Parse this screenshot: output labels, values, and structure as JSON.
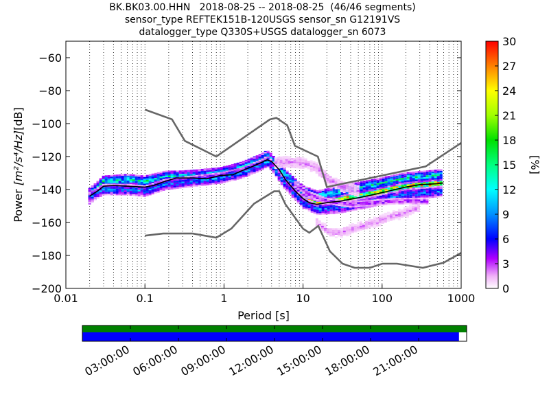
{
  "title": {
    "line1": "BK.BK03.00.HHN   2018-08-25 -- 2018-08-25  (46/46 segments)",
    "line2": "sensor_type REFTEK151B-120USGS sensor_sn G12191VS",
    "line3": "datalogger_type Q330S+USGS datalogger_sn 6073"
  },
  "chart_data": {
    "type": "heatmap",
    "xlabel": "Period [s]",
    "ylabel_main": "Power ",
    "ylabel_unit": "[m²/s⁴/Hz]",
    "ylabel_db": "[dB]",
    "x_scale": "log",
    "xlim": [
      0.01,
      1000
    ],
    "ylim": [
      -200,
      -50
    ],
    "x_ticks": [
      {
        "value": 0.01,
        "label": "0.01"
      },
      {
        "value": 0.1,
        "label": "0.1"
      },
      {
        "value": 1,
        "label": "1"
      },
      {
        "value": 10,
        "label": "10"
      },
      {
        "value": 100,
        "label": "100"
      },
      {
        "value": 1000,
        "label": "1000"
      }
    ],
    "y_ticks": [
      {
        "value": -60,
        "label": "−60"
      },
      {
        "value": -80,
        "label": "−80"
      },
      {
        "value": -100,
        "label": "−100"
      },
      {
        "value": -120,
        "label": "−120"
      },
      {
        "value": -140,
        "label": "−140"
      },
      {
        "value": -160,
        "label": "−160"
      },
      {
        "value": -180,
        "label": "−180"
      },
      {
        "value": -200,
        "label": "−200"
      }
    ],
    "grid": "dotted vertical",
    "colorbar": {
      "label": "[%]",
      "range": [
        0,
        30
      ],
      "ticks": [
        "0",
        "3",
        "6",
        "9",
        "12",
        "15",
        "18",
        "21",
        "24",
        "27",
        "30"
      ]
    },
    "noise_model_color": "#666666",
    "high_noise_model": [
      [
        0.1,
        -91.5
      ],
      [
        0.22,
        -97.4
      ],
      [
        0.32,
        -110.5
      ],
      [
        0.8,
        -120
      ],
      [
        3.8,
        -97.5
      ],
      [
        4.6,
        -96.5
      ],
      [
        6.3,
        -101
      ],
      [
        7.9,
        -113.5
      ],
      [
        15.4,
        -120
      ],
      [
        20,
        -138.5
      ],
      [
        354.8,
        -126
      ],
      [
        10000,
        -80
      ]
    ],
    "low_noise_model": [
      [
        0.1,
        -168
      ],
      [
        0.17,
        -166.7
      ],
      [
        0.4,
        -166.7
      ],
      [
        0.8,
        -169.2
      ],
      [
        1.24,
        -163.7
      ],
      [
        2.4,
        -148.6
      ],
      [
        4.3,
        -141.1
      ],
      [
        5,
        -141.1
      ],
      [
        6,
        -149
      ],
      [
        10,
        -163.8
      ],
      [
        12,
        -166.2
      ],
      [
        15.6,
        -162.1
      ],
      [
        21.9,
        -177.5
      ],
      [
        31.6,
        -185
      ],
      [
        45,
        -187.5
      ],
      [
        70,
        -187.5
      ],
      [
        101,
        -185
      ],
      [
        154,
        -185
      ],
      [
        328,
        -187.5
      ],
      [
        600,
        -184.4
      ],
      [
        10000,
        -151.5
      ]
    ],
    "series": [
      {
        "name": "",
        "color": "#000000",
        "points": [
          [
            0.02,
            -144
          ],
          [
            0.025,
            -141
          ],
          [
            0.03,
            -138
          ],
          [
            0.04,
            -137.5
          ],
          [
            0.06,
            -138
          ],
          [
            0.1,
            -138.5
          ],
          [
            0.13,
            -137.5
          ],
          [
            0.18,
            -135
          ],
          [
            0.25,
            -133
          ],
          [
            0.4,
            -133
          ],
          [
            0.6,
            -133.5
          ],
          [
            0.9,
            -131.5
          ],
          [
            1.3,
            -131
          ],
          [
            1.7,
            -128.5
          ],
          [
            2.3,
            -126
          ],
          [
            3,
            -123.5
          ],
          [
            3.5,
            -122
          ],
          [
            4,
            -123
          ],
          [
            5,
            -128
          ],
          [
            6,
            -134
          ],
          [
            8,
            -141
          ],
          [
            10,
            -145.5
          ],
          [
            12,
            -148
          ],
          [
            15,
            -149
          ],
          [
            20,
            -148
          ],
          [
            30,
            -147
          ],
          [
            50,
            -145
          ],
          [
            80,
            -143
          ],
          [
            120,
            -141
          ],
          [
            200,
            -138.5
          ],
          [
            300,
            -137
          ],
          [
            500,
            -136.5
          ],
          [
            600,
            -136
          ]
        ]
      }
    ],
    "density_bands": [
      {
        "center": [
          [
            0.02,
            -144
          ],
          [
            0.03,
            -137
          ],
          [
            0.06,
            -137
          ],
          [
            0.1,
            -138
          ],
          [
            0.18,
            -134
          ],
          [
            0.4,
            -133
          ],
          [
            0.9,
            -131.5
          ],
          [
            1.7,
            -128
          ],
          [
            3,
            -123
          ],
          [
            3.5,
            -121
          ],
          [
            4,
            -123
          ],
          [
            6,
            -134
          ],
          [
            10,
            -145
          ],
          [
            15,
            -148.5
          ],
          [
            30,
            -146
          ],
          [
            80,
            -142
          ],
          [
            200,
            -138
          ],
          [
            600,
            -136
          ]
        ],
        "spread": 4.5,
        "percent": 22
      },
      {
        "center": [
          [
            0.02,
            -143
          ],
          [
            0.03,
            -135
          ],
          [
            0.06,
            -134
          ],
          [
            0.1,
            -135
          ],
          [
            0.18,
            -132
          ],
          [
            0.4,
            -132
          ],
          [
            0.9,
            -130
          ],
          [
            1.7,
            -127
          ],
          [
            3,
            -122
          ],
          [
            3.5,
            -120
          ],
          [
            4,
            -122
          ],
          [
            6,
            -131
          ],
          [
            10,
            -141
          ],
          [
            15,
            -144
          ],
          [
            30,
            -141
          ],
          [
            80,
            -137
          ],
          [
            200,
            -133
          ],
          [
            600,
            -131
          ]
        ],
        "spread": 3,
        "percent": 12
      },
      {
        "center": [
          [
            0.02,
            -145
          ],
          [
            0.03,
            -140
          ],
          [
            0.06,
            -140
          ],
          [
            0.1,
            -141
          ],
          [
            0.18,
            -137
          ],
          [
            0.4,
            -135
          ],
          [
            0.9,
            -133
          ],
          [
            1.7,
            -130
          ],
          [
            3,
            -125
          ],
          [
            3.5,
            -123
          ],
          [
            4,
            -125
          ],
          [
            6,
            -137
          ],
          [
            10,
            -148
          ],
          [
            15,
            -152
          ],
          [
            30,
            -151
          ],
          [
            80,
            -147
          ],
          [
            200,
            -143
          ],
          [
            600,
            -141
          ]
        ],
        "spread": 3,
        "percent": 8
      },
      {
        "center": [
          [
            4.5,
            -124
          ],
          [
            6,
            -123
          ],
          [
            10,
            -124
          ],
          [
            15,
            -127
          ],
          [
            20,
            -133
          ],
          [
            30,
            -138
          ],
          [
            50,
            -141
          ]
        ],
        "spread": 4,
        "percent": 2
      },
      {
        "center": [
          [
            15,
            -160
          ],
          [
            22,
            -166
          ],
          [
            30,
            -166
          ],
          [
            50,
            -163
          ],
          [
            80,
            -160
          ],
          [
            120,
            -157
          ],
          [
            200,
            -154
          ],
          [
            300,
            -151
          ]
        ],
        "spread": 3,
        "percent": 2
      },
      {
        "center": [
          [
            8,
            -137
          ],
          [
            12,
            -143
          ],
          [
            20,
            -147
          ],
          [
            40,
            -149
          ],
          [
            80,
            -148
          ],
          [
            150,
            -147
          ],
          [
            300,
            -147
          ],
          [
            400,
            -147
          ]
        ],
        "spread": 1.5,
        "percent": 4
      }
    ]
  },
  "timeline": {
    "tick_labels": [
      "03:00:00",
      "06:00:00",
      "09:00:00",
      "12:00:00",
      "15:00:00",
      "18:00:00",
      "21:00:00"
    ],
    "tick_hours": [
      3,
      6,
      9,
      12,
      15,
      18,
      21
    ],
    "total_hours": 24,
    "top_bar": {
      "color": "#008000",
      "fraction": 1.0
    },
    "bottom_bar": {
      "color": "#0000ff",
      "fraction": 0.98
    }
  }
}
